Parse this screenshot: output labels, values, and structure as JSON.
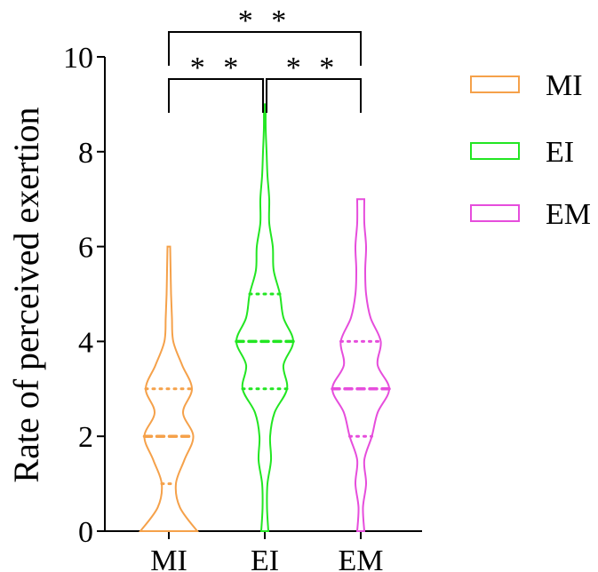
{
  "chart_data": {
    "type": "violin",
    "ylabel": "Rate of perceived exertion",
    "ylim": [
      0,
      10
    ],
    "y_ticks": [
      "0",
      "2",
      "4",
      "6",
      "8",
      "10"
    ],
    "categories": [
      "MI",
      "EI",
      "EM"
    ],
    "grid": false,
    "legend_position": "right",
    "series": [
      {
        "name": "MI",
        "color": "#F5A14A",
        "min": 0,
        "max": 6,
        "quartile_low": 1.0,
        "median": 2,
        "quartile_high": 3,
        "density": [
          [
            0,
            0.64
          ],
          [
            0.5,
            0.25
          ],
          [
            1,
            0.16
          ],
          [
            1.5,
            0.35
          ],
          [
            2,
            0.55
          ],
          [
            2.5,
            0.32
          ],
          [
            3,
            0.52
          ],
          [
            3.5,
            0.3
          ],
          [
            4,
            0.1
          ],
          [
            4.5,
            0.07
          ],
          [
            5,
            0.05
          ],
          [
            5.5,
            0.04
          ],
          [
            6,
            0.03
          ]
        ]
      },
      {
        "name": "EI",
        "color": "#22E622",
        "min": 0,
        "max": 9,
        "quartile_low": 3,
        "median": 4,
        "quartile_high": 5,
        "density": [
          [
            0,
            0.08
          ],
          [
            0.5,
            0.05
          ],
          [
            1,
            0.06
          ],
          [
            1.5,
            0.14
          ],
          [
            2,
            0.12
          ],
          [
            2.5,
            0.22
          ],
          [
            3,
            0.5
          ],
          [
            3.5,
            0.42
          ],
          [
            4,
            0.64
          ],
          [
            4.5,
            0.42
          ],
          [
            5,
            0.34
          ],
          [
            5.5,
            0.2
          ],
          [
            6,
            0.18
          ],
          [
            6.5,
            0.1
          ],
          [
            7,
            0.1
          ],
          [
            7.5,
            0.06
          ],
          [
            8,
            0.04
          ],
          [
            8.5,
            0.02
          ],
          [
            9,
            0.02
          ]
        ]
      },
      {
        "name": "EM",
        "color": "#E64DDC",
        "min": 0,
        "max": 7,
        "quartile_low": 2,
        "median": 3,
        "quartile_high": 4,
        "density": [
          [
            0,
            0.08
          ],
          [
            0.5,
            0.05
          ],
          [
            1,
            0.12
          ],
          [
            1.5,
            0.08
          ],
          [
            2,
            0.25
          ],
          [
            2.5,
            0.38
          ],
          [
            3,
            0.64
          ],
          [
            3.5,
            0.38
          ],
          [
            4,
            0.45
          ],
          [
            4.5,
            0.22
          ],
          [
            5,
            0.12
          ],
          [
            5.5,
            0.1
          ],
          [
            6,
            0.12
          ],
          [
            6.5,
            0.08
          ],
          [
            7,
            0.08
          ]
        ]
      }
    ],
    "significance": [
      {
        "from": "MI",
        "to": "EI",
        "label": "**"
      },
      {
        "from": "EI",
        "to": "EM",
        "label": "**"
      },
      {
        "from": "MI",
        "to": "EM",
        "label": "**"
      }
    ]
  }
}
